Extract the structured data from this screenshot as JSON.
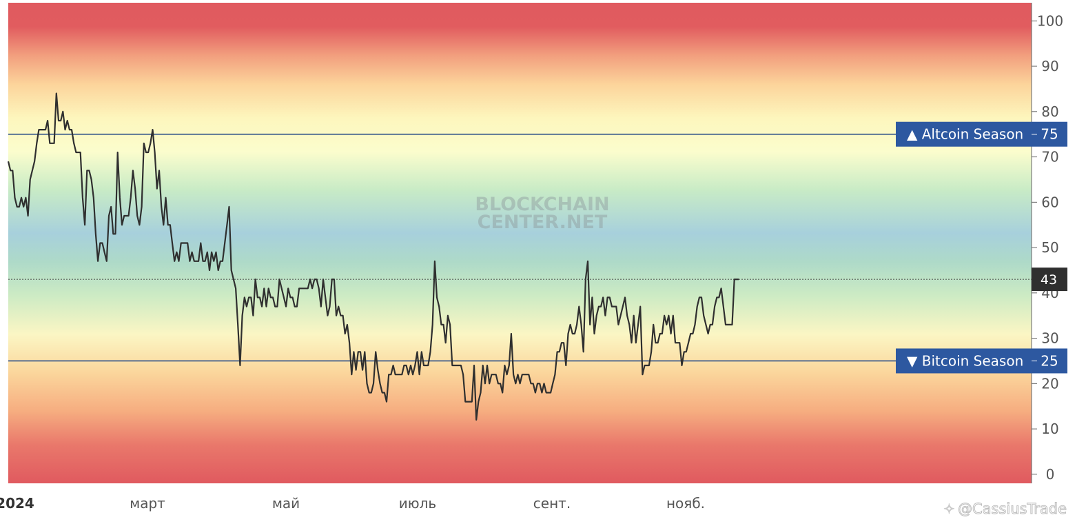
{
  "chart_data": {
    "type": "line",
    "x_ticks": [
      "2024",
      "март",
      "май",
      "июль",
      "сент.",
      "нояб."
    ],
    "y_ticks": [
      0,
      10,
      20,
      30,
      40,
      50,
      60,
      70,
      80,
      90,
      100
    ],
    "ylim": [
      -2,
      104
    ],
    "current_value": 43,
    "current_value_label": "43",
    "thresholds": [
      {
        "label": "▲ Altcoin Season",
        "value_label": "75",
        "value": 75
      },
      {
        "label": "▼ Bitcoin Season",
        "value_label": "25",
        "value": 25
      }
    ],
    "series": [
      {
        "values": [
          69,
          67,
          67,
          61,
          59,
          59,
          61,
          59,
          61,
          57,
          65,
          67,
          69,
          73,
          76,
          76,
          76,
          76,
          78,
          73,
          73,
          73,
          84,
          78,
          78,
          80,
          76,
          78,
          76,
          76,
          73,
          71,
          71,
          71,
          61,
          55,
          67,
          67,
          65,
          61,
          53,
          47,
          51,
          51,
          49,
          47,
          57,
          59,
          53,
          53,
          71,
          61,
          55,
          57,
          57,
          57,
          61,
          67,
          63,
          57,
          55,
          59,
          73,
          71,
          71,
          73,
          76,
          71,
          63,
          67,
          59,
          55,
          61,
          55,
          55,
          51,
          47,
          49,
          47,
          51,
          51,
          51,
          51,
          47,
          49,
          47,
          47,
          47,
          51,
          47,
          47,
          49,
          45,
          49,
          47,
          49,
          45,
          47,
          47,
          51,
          55,
          59,
          45,
          43,
          41,
          33,
          24,
          35,
          39,
          37,
          39,
          39,
          35,
          43,
          39,
          39,
          37,
          41,
          37,
          41,
          39,
          39,
          37,
          37,
          43,
          41,
          39,
          37,
          41,
          39,
          39,
          37,
          37,
          41,
          41,
          41,
          41,
          41,
          43,
          41,
          43,
          43,
          41,
          37,
          43,
          39,
          35,
          37,
          43,
          43,
          35,
          37,
          35,
          35,
          31,
          33,
          29,
          22,
          27,
          23,
          27,
          27,
          23,
          27,
          20,
          18,
          18,
          20,
          27,
          23,
          20,
          18,
          18,
          16,
          22,
          22,
          24,
          22,
          22,
          22,
          22,
          24,
          24,
          22,
          24,
          22,
          24,
          27,
          22,
          27,
          24,
          24,
          24,
          27,
          33,
          47,
          39,
          37,
          33,
          33,
          29,
          35,
          33,
          24,
          24,
          24,
          24,
          24,
          22,
          16,
          16,
          16,
          16,
          24,
          12,
          16,
          18,
          24,
          20,
          24,
          20,
          22,
          22,
          22,
          20,
          20,
          18,
          24,
          22,
          24,
          31,
          22,
          20,
          22,
          20,
          22,
          22,
          22,
          22,
          20,
          20,
          18,
          20,
          20,
          18,
          20,
          18,
          18,
          18,
          20,
          22,
          27,
          27,
          29,
          29,
          24,
          31,
          33,
          31,
          31,
          33,
          37,
          33,
          27,
          43,
          47,
          33,
          39,
          31,
          35,
          37,
          37,
          39,
          35,
          39,
          39,
          37,
          37,
          37,
          33,
          35,
          37,
          39,
          35,
          33,
          29,
          35,
          29,
          33,
          37,
          22,
          24,
          24,
          24,
          27,
          33,
          29,
          29,
          31,
          31,
          35,
          33,
          35,
          31,
          35,
          29,
          29,
          29,
          24,
          27,
          27,
          29,
          31,
          31,
          33,
          37,
          39,
          39,
          35,
          33,
          31,
          33,
          33,
          37,
          39,
          39,
          41,
          37,
          33,
          33,
          33,
          33,
          43,
          43,
          43
        ]
      }
    ],
    "watermark": [
      "BLOCKCHAIN",
      "CENTER.NET"
    ],
    "credit": "@CassiusTrade",
    "colors": {
      "line": "#2f2f2f",
      "threshold_line": "#2c4f88",
      "badge_bg": "#2d58a0",
      "current_badge_bg": "#2f2f2f",
      "axis_text": "#555555"
    }
  }
}
